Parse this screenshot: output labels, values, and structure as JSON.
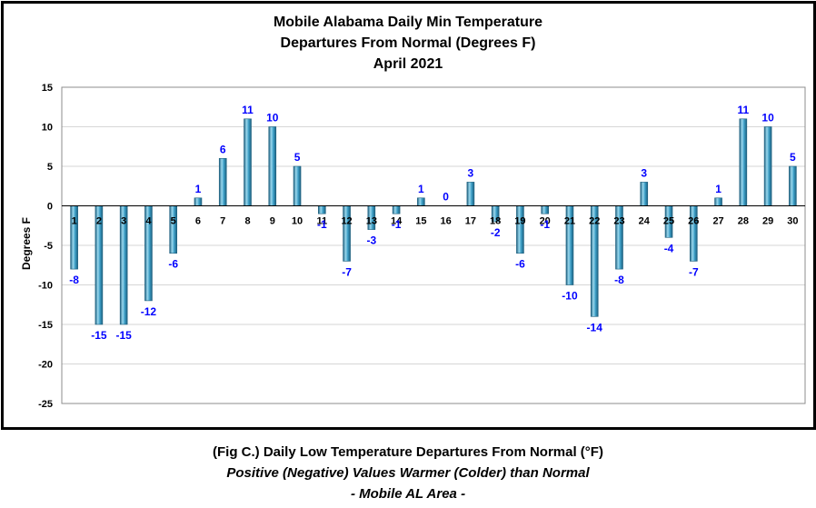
{
  "chart_data": {
    "type": "bar",
    "title_lines": [
      "Mobile Alabama Daily Min Temperature",
      "Departures From Normal (Degrees F)",
      "April 2021"
    ],
    "xlabel": "",
    "ylabel": "Degrees F",
    "ylim": [
      -25,
      15
    ],
    "yticks": [
      15,
      10,
      5,
      0,
      -5,
      -10,
      -15,
      -20,
      -25
    ],
    "grid": true,
    "legend": "none",
    "categories": [
      "1",
      "2",
      "3",
      "4",
      "5",
      "6",
      "7",
      "8",
      "9",
      "10",
      "11",
      "12",
      "13",
      "14",
      "15",
      "16",
      "17",
      "18",
      "19",
      "20",
      "21",
      "22",
      "23",
      "24",
      "25",
      "26",
      "27",
      "28",
      "29",
      "30"
    ],
    "values": [
      -8,
      -15,
      -15,
      -12,
      -6,
      1,
      6,
      11,
      10,
      5,
      -1,
      -7,
      -3,
      -1,
      1,
      0,
      3,
      -2,
      -6,
      -1,
      -10,
      -14,
      -8,
      3,
      -4,
      -7,
      1,
      11,
      10,
      5
    ],
    "colors": {
      "bar_light": "#9ad8ee",
      "bar_mid": "#3a9cc4",
      "bar_dark": "#1d5f7e",
      "data_label": "#0000ff",
      "grid": "#d6d6d6",
      "axis": "#000000"
    }
  },
  "captions": {
    "line1": "(Fig C.) Daily Low Temperature Departures From Normal (°F)",
    "line2": "Positive (Negative) Values Warmer (Colder) than Normal",
    "line3": "- Mobile AL Area -"
  }
}
